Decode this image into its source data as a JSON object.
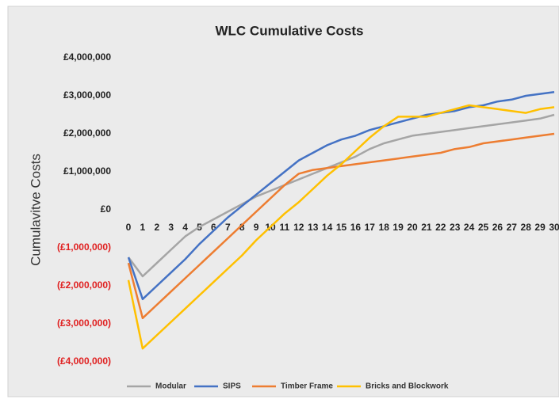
{
  "chart_data": {
    "type": "line",
    "title": "WLC Cumulative Costs",
    "y_label": "Cumulavitve Costs",
    "categories": [
      "0",
      "1",
      "2",
      "3",
      "4",
      "5",
      "6",
      "7",
      "8",
      "9",
      "10",
      "11",
      "12",
      "13",
      "14",
      "15",
      "16",
      "17",
      "18",
      "19",
      "20",
      "21",
      "22",
      "23",
      "24",
      "25",
      "26",
      "27",
      "28",
      "29",
      "30"
    ],
    "ylim": [
      -4000000,
      4000000
    ],
    "yticks": [
      {
        "value": 4000000,
        "label": "£4,000,000"
      },
      {
        "value": 3000000,
        "label": "£3,000,000"
      },
      {
        "value": 2000000,
        "label": "£2,000,000"
      },
      {
        "value": 1000000,
        "label": "£1,000,000"
      },
      {
        "value": 0,
        "label": "£0"
      },
      {
        "value": -1000000,
        "label": "(£1,000,000)"
      },
      {
        "value": -2000000,
        "label": "(£2,000,000)"
      },
      {
        "value": -3000000,
        "label": "(£3,000,000)"
      },
      {
        "value": -4000000,
        "label": "(£4,000,000)"
      }
    ],
    "positive_tick_color": "#222222",
    "negative_tick_color": "#e02020",
    "grid": false,
    "legend": "bottom",
    "series": [
      {
        "name": "Modular",
        "color": "#a5a5a5",
        "values": [
          -1250000,
          -1750000,
          -1400000,
          -1050000,
          -700000,
          -450000,
          -250000,
          -50000,
          150000,
          350000,
          500000,
          650000,
          800000,
          950000,
          1100000,
          1250000,
          1400000,
          1600000,
          1750000,
          1850000,
          1950000,
          2000000,
          2050000,
          2100000,
          2150000,
          2200000,
          2250000,
          2300000,
          2350000,
          2400000,
          2500000
        ]
      },
      {
        "name": "SIPS",
        "color": "#4472c4",
        "values": [
          -1250000,
          -2350000,
          -2000000,
          -1650000,
          -1300000,
          -900000,
          -550000,
          -200000,
          100000,
          400000,
          700000,
          1000000,
          1300000,
          1500000,
          1700000,
          1850000,
          1950000,
          2100000,
          2200000,
          2300000,
          2400000,
          2500000,
          2550000,
          2600000,
          2700000,
          2750000,
          2850000,
          2900000,
          3000000,
          3050000,
          3100000
        ]
      },
      {
        "name": "Timber Frame",
        "color": "#ed7d31",
        "values": [
          -1400000,
          -2850000,
          -2500000,
          -2150000,
          -1800000,
          -1450000,
          -1100000,
          -750000,
          -400000,
          -50000,
          300000,
          650000,
          950000,
          1050000,
          1100000,
          1150000,
          1200000,
          1250000,
          1300000,
          1350000,
          1400000,
          1450000,
          1500000,
          1600000,
          1650000,
          1750000,
          1800000,
          1850000,
          1900000,
          1950000,
          2000000
        ]
      },
      {
        "name": "Bricks and Blockwork",
        "color": "#ffc000",
        "values": [
          -1850000,
          -3650000,
          -3300000,
          -2950000,
          -2600000,
          -2250000,
          -1900000,
          -1550000,
          -1200000,
          -800000,
          -450000,
          -100000,
          200000,
          550000,
          900000,
          1200000,
          1550000,
          1900000,
          2200000,
          2450000,
          2450000,
          2450000,
          2550000,
          2650000,
          2750000,
          2700000,
          2650000,
          2600000,
          2550000,
          2650000,
          2700000
        ]
      }
    ]
  }
}
